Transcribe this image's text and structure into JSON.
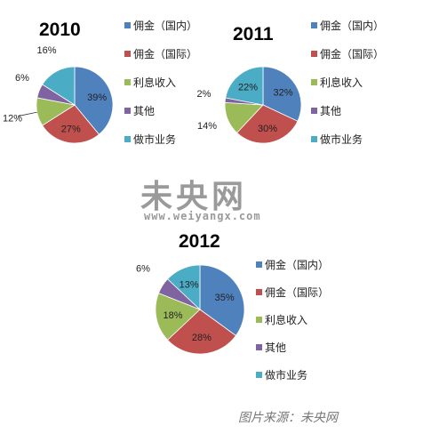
{
  "chart_data": [
    {
      "type": "pie",
      "title": "2010",
      "categories": [
        "佣金（国内）",
        "佣金（国际）",
        "利息收入",
        "其他",
        "做市业务"
      ],
      "values": [
        39,
        27,
        12,
        6,
        16
      ],
      "value_labels": [
        "39%",
        "27%",
        "12%",
        "6%",
        "16%"
      ],
      "legend_position": "right"
    },
    {
      "type": "pie",
      "title": "2011",
      "categories": [
        "佣金（国内）",
        "佣金（国际）",
        "利息收入",
        "其他",
        "做市业务"
      ],
      "values": [
        32,
        30,
        14,
        2,
        22
      ],
      "value_labels": [
        "32%",
        "30%",
        "14%",
        "2%",
        "22%"
      ],
      "legend_position": "right"
    },
    {
      "type": "pie",
      "title": "2012",
      "categories": [
        "佣金（国内）",
        "佣金（国际）",
        "利息收入",
        "其他",
        "做市业务"
      ],
      "values": [
        35,
        28,
        18,
        6,
        13
      ],
      "value_labels": [
        "35%",
        "28%",
        "18%",
        "6%",
        "13%"
      ],
      "legend_position": "right"
    }
  ],
  "colors": [
    "#4f81bd",
    "#c0504d",
    "#9bbb59",
    "#8064a2",
    "#4bacc6"
  ],
  "watermark": {
    "title": "未央网",
    "url": "www.weiyangx.com"
  },
  "source": "图片来源：未央网"
}
